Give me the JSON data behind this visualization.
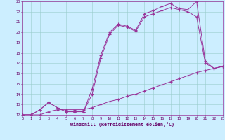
{
  "xlabel": "Windchill (Refroidissement éolien,°C)",
  "bg_color": "#cceeff",
  "line_color": "#993399",
  "grid_color": "#99cccc",
  "xmin": 0,
  "xmax": 23,
  "ymin": 12,
  "ymax": 23,
  "line1_x": [
    0,
    1,
    2,
    3,
    4,
    5,
    6,
    7,
    8,
    9,
    10,
    11,
    12,
    13,
    14,
    15,
    16,
    17,
    18,
    19,
    20,
    21,
    22,
    23
  ],
  "line1_y": [
    12,
    12.0,
    12.0,
    12.3,
    12.5,
    12.5,
    12.5,
    12.5,
    12.7,
    13.0,
    13.3,
    13.5,
    13.8,
    14.0,
    14.3,
    14.6,
    14.9,
    15.2,
    15.5,
    15.8,
    16.1,
    16.3,
    16.5,
    16.7
  ],
  "line2_x": [
    0,
    1,
    2,
    3,
    4,
    5,
    6,
    7,
    8,
    9,
    10,
    11,
    12,
    13,
    14,
    15,
    16,
    17,
    18,
    19,
    20,
    21,
    22,
    23
  ],
  "line2_y": [
    12,
    12.0,
    12.5,
    13.2,
    12.7,
    12.3,
    12.3,
    12.3,
    14.0,
    17.5,
    19.8,
    20.7,
    20.5,
    20.1,
    21.5,
    21.8,
    22.1,
    22.4,
    22.2,
    22.0,
    21.5,
    17.0,
    16.5,
    16.7
  ],
  "line3_x": [
    0,
    1,
    2,
    3,
    4,
    5,
    6,
    7,
    8,
    9,
    10,
    11,
    12,
    13,
    14,
    15,
    16,
    17,
    18,
    19,
    20,
    21,
    22,
    23
  ],
  "line3_y": [
    12,
    12.0,
    12.5,
    13.2,
    12.7,
    12.3,
    12.3,
    12.3,
    14.5,
    17.8,
    20.0,
    20.8,
    20.6,
    20.2,
    21.8,
    22.1,
    22.5,
    22.8,
    22.3,
    22.2,
    23.0,
    17.2,
    16.5,
    16.7
  ],
  "xtick_labels": [
    "0",
    "1",
    "2",
    "3",
    "4",
    "5",
    "6",
    "7",
    "8",
    "9",
    "10",
    "11",
    "12",
    "13",
    "14",
    "15",
    "16",
    "17",
    "18",
    "19",
    "20",
    "21",
    "22",
    "23"
  ],
  "ytick_labels": [
    "12",
    "13",
    "14",
    "15",
    "16",
    "17",
    "18",
    "19",
    "20",
    "21",
    "22",
    "23"
  ],
  "figwidth": 3.2,
  "figheight": 2.0,
  "dpi": 100
}
